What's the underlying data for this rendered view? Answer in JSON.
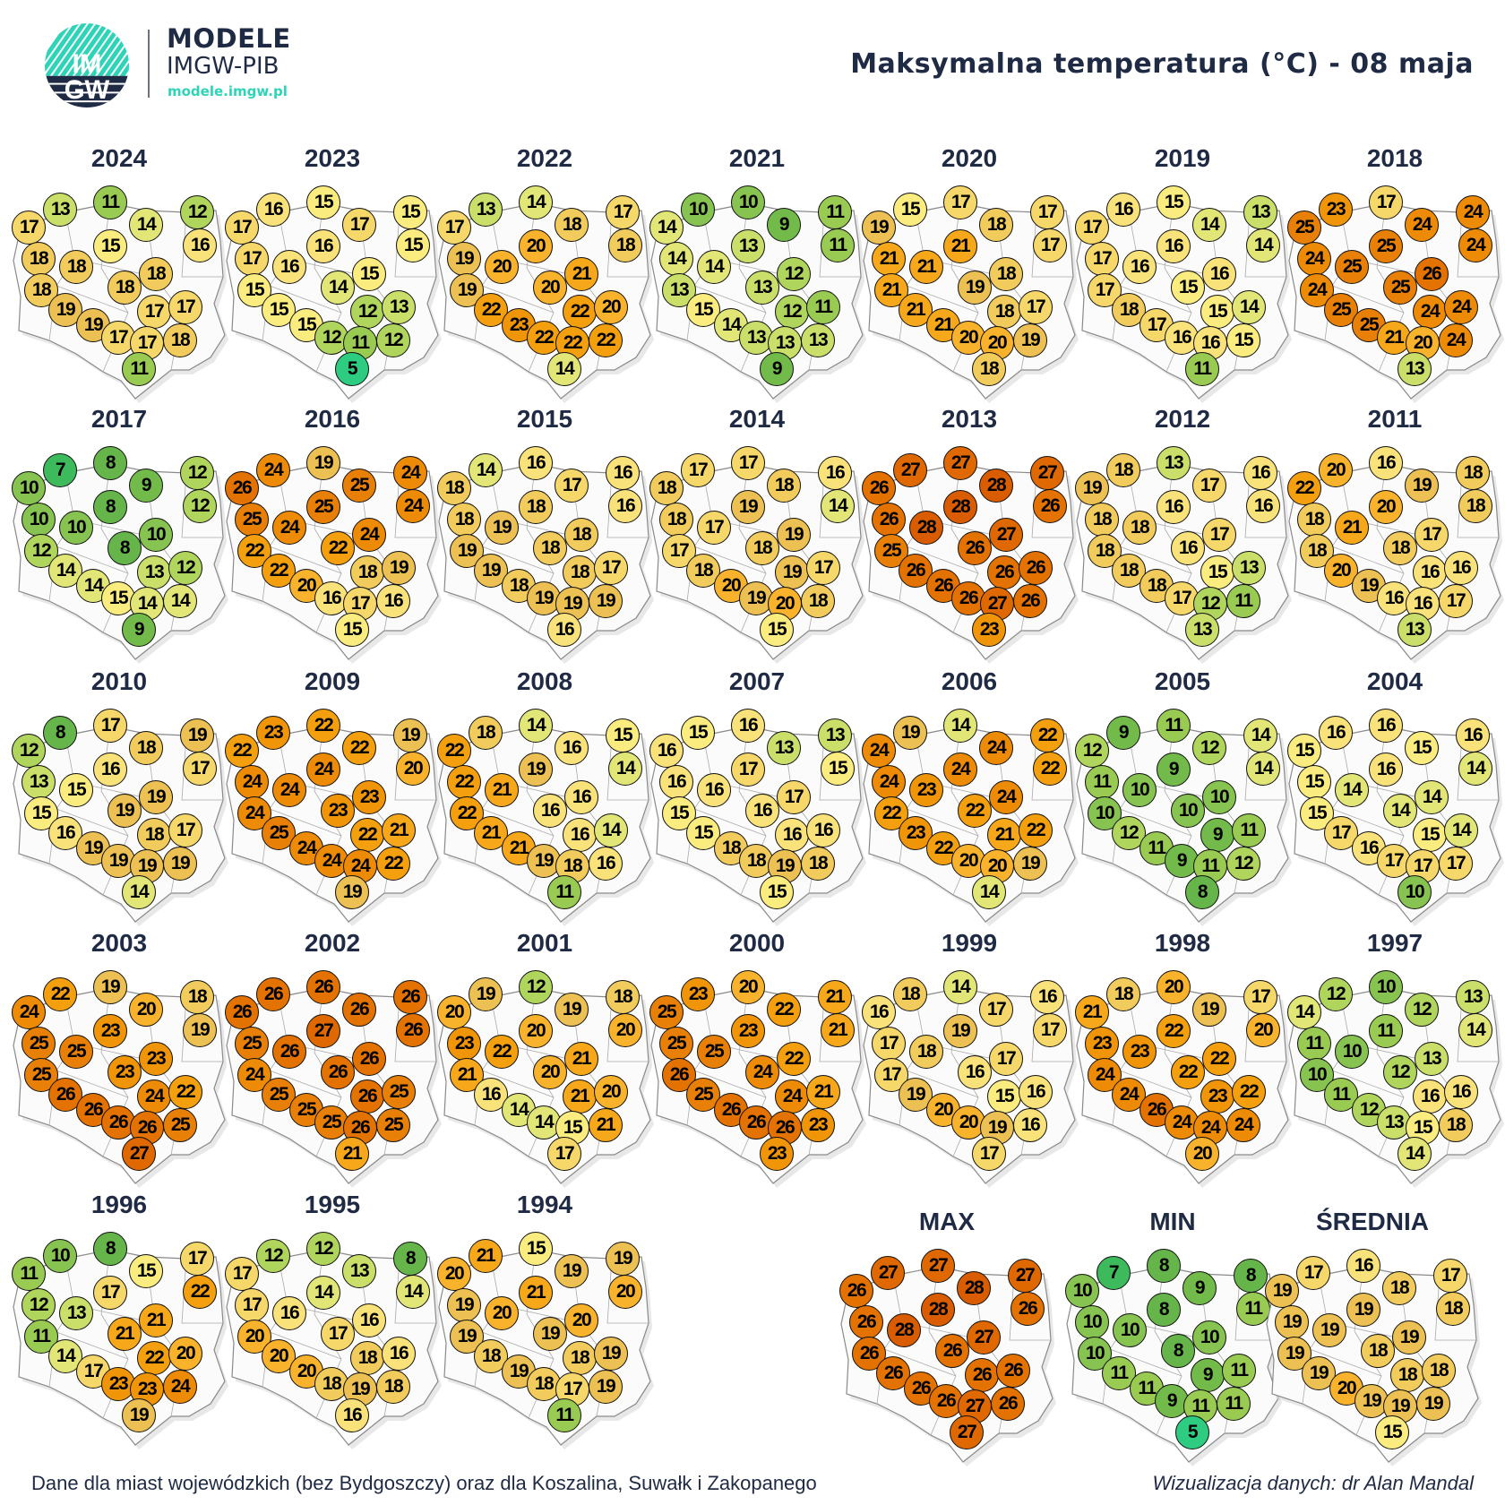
{
  "header": {
    "logo_text": "IMGW",
    "brand_title": "MODELE",
    "brand_subtitle": "IMGW-PIB",
    "brand_url": "modele.imgw.pl",
    "title": "Maksymalna temperatura (°C) - 08 maja"
  },
  "maps": [
    {
      "title": "2024",
      "values": [
        17,
        13,
        11,
        14,
        12,
        16,
        15,
        18,
        18,
        18,
        18,
        18,
        19,
        19,
        17,
        17,
        17,
        17,
        18,
        11
      ]
    },
    {
      "title": "2023",
      "values": [
        17,
        16,
        15,
        17,
        15,
        15,
        16,
        17,
        16,
        15,
        15,
        14,
        15,
        15,
        12,
        13,
        12,
        11,
        12,
        5
      ]
    },
    {
      "title": "2022",
      "values": [
        17,
        13,
        14,
        18,
        17,
        18,
        20,
        19,
        20,
        19,
        21,
        20,
        22,
        23,
        22,
        20,
        22,
        22,
        22,
        14
      ]
    },
    {
      "title": "2021",
      "values": [
        14,
        10,
        10,
        9,
        11,
        11,
        13,
        14,
        14,
        13,
        12,
        13,
        15,
        14,
        12,
        11,
        13,
        13,
        13,
        9
      ]
    },
    {
      "title": "2020",
      "values": [
        19,
        15,
        17,
        18,
        17,
        17,
        21,
        21,
        21,
        21,
        18,
        19,
        21,
        21,
        18,
        17,
        20,
        20,
        19,
        18
      ]
    },
    {
      "title": "2019",
      "values": [
        17,
        16,
        15,
        14,
        13,
        14,
        16,
        17,
        16,
        17,
        16,
        15,
        18,
        17,
        15,
        14,
        16,
        16,
        15,
        11
      ]
    },
    {
      "title": "2018",
      "values": [
        25,
        23,
        17,
        24,
        24,
        24,
        25,
        24,
        25,
        24,
        26,
        25,
        25,
        25,
        24,
        24,
        21,
        20,
        24,
        13
      ]
    },
    {
      "title": "2017",
      "values": [
        10,
        7,
        8,
        9,
        12,
        12,
        8,
        10,
        10,
        12,
        10,
        8,
        14,
        14,
        13,
        12,
        15,
        14,
        14,
        9
      ]
    },
    {
      "title": "2016",
      "values": [
        26,
        24,
        19,
        25,
        24,
        24,
        25,
        25,
        24,
        22,
        24,
        22,
        22,
        20,
        18,
        19,
        16,
        17,
        16,
        15
      ]
    },
    {
      "title": "2015",
      "values": [
        18,
        14,
        16,
        17,
        16,
        16,
        18,
        18,
        19,
        19,
        18,
        18,
        19,
        18,
        18,
        17,
        19,
        19,
        19,
        16
      ]
    },
    {
      "title": "2014",
      "values": [
        18,
        17,
        17,
        18,
        16,
        14,
        19,
        18,
        17,
        17,
        19,
        18,
        18,
        20,
        19,
        17,
        19,
        20,
        18,
        15
      ]
    },
    {
      "title": "2013",
      "values": [
        26,
        27,
        27,
        28,
        27,
        26,
        28,
        26,
        28,
        25,
        27,
        26,
        26,
        26,
        26,
        26,
        26,
        27,
        26,
        23
      ]
    },
    {
      "title": "2012",
      "values": [
        19,
        18,
        13,
        17,
        16,
        16,
        16,
        18,
        18,
        18,
        17,
        16,
        18,
        18,
        15,
        13,
        17,
        12,
        11,
        13
      ]
    },
    {
      "title": "2011",
      "values": [
        22,
        20,
        16,
        19,
        18,
        18,
        20,
        18,
        21,
        18,
        17,
        18,
        20,
        19,
        16,
        16,
        16,
        16,
        17,
        13
      ]
    },
    {
      "title": "2010",
      "values": [
        12,
        8,
        17,
        18,
        19,
        17,
        16,
        13,
        15,
        15,
        19,
        19,
        16,
        19,
        18,
        17,
        19,
        19,
        19,
        14
      ]
    },
    {
      "title": "2009",
      "values": [
        22,
        23,
        22,
        22,
        19,
        20,
        24,
        24,
        24,
        24,
        23,
        23,
        25,
        24,
        22,
        21,
        24,
        24,
        22,
        19
      ]
    },
    {
      "title": "2008",
      "values": [
        22,
        18,
        14,
        16,
        15,
        14,
        19,
        22,
        21,
        22,
        16,
        16,
        21,
        21,
        16,
        14,
        19,
        18,
        16,
        11
      ]
    },
    {
      "title": "2007",
      "values": [
        16,
        15,
        16,
        13,
        13,
        15,
        17,
        16,
        16,
        15,
        17,
        16,
        15,
        18,
        16,
        16,
        18,
        19,
        18,
        15
      ]
    },
    {
      "title": "2006",
      "values": [
        24,
        19,
        14,
        24,
        22,
        22,
        24,
        24,
        23,
        22,
        24,
        22,
        23,
        22,
        21,
        22,
        20,
        20,
        19,
        14
      ]
    },
    {
      "title": "2005",
      "values": [
        12,
        9,
        11,
        12,
        14,
        14,
        9,
        11,
        10,
        10,
        10,
        10,
        12,
        11,
        9,
        11,
        9,
        11,
        12,
        8
      ]
    },
    {
      "title": "2004",
      "values": [
        15,
        16,
        16,
        15,
        16,
        14,
        16,
        15,
        14,
        15,
        14,
        14,
        17,
        16,
        15,
        14,
        17,
        17,
        17,
        10
      ]
    },
    {
      "title": "2003",
      "values": [
        24,
        22,
        19,
        20,
        18,
        19,
        23,
        25,
        25,
        25,
        23,
        23,
        26,
        26,
        24,
        22,
        26,
        26,
        25,
        27
      ]
    },
    {
      "title": "2002",
      "values": [
        26,
        26,
        26,
        26,
        26,
        26,
        27,
        25,
        26,
        24,
        26,
        26,
        25,
        25,
        26,
        25,
        25,
        26,
        25,
        21
      ]
    },
    {
      "title": "2001",
      "values": [
        20,
        19,
        12,
        19,
        18,
        20,
        20,
        23,
        22,
        21,
        21,
        20,
        16,
        14,
        21,
        20,
        14,
        15,
        21,
        17
      ]
    },
    {
      "title": "2000",
      "values": [
        25,
        23,
        20,
        22,
        21,
        21,
        23,
        25,
        25,
        26,
        22,
        24,
        25,
        26,
        24,
        21,
        26,
        26,
        23,
        23
      ]
    },
    {
      "title": "1999",
      "values": [
        16,
        18,
        14,
        17,
        16,
        17,
        19,
        17,
        18,
        17,
        17,
        16,
        19,
        20,
        15,
        16,
        20,
        19,
        16,
        17
      ]
    },
    {
      "title": "1998",
      "values": [
        21,
        18,
        20,
        19,
        17,
        20,
        22,
        23,
        23,
        24,
        22,
        22,
        24,
        26,
        23,
        22,
        24,
        24,
        24,
        20
      ]
    },
    {
      "title": "1997",
      "values": [
        14,
        12,
        10,
        12,
        13,
        14,
        11,
        11,
        10,
        10,
        13,
        12,
        11,
        12,
        16,
        16,
        13,
        15,
        18,
        14
      ]
    },
    {
      "title": "1996",
      "values": [
        11,
        10,
        8,
        15,
        17,
        22,
        17,
        12,
        13,
        11,
        21,
        21,
        14,
        17,
        22,
        20,
        23,
        23,
        24,
        19
      ]
    },
    {
      "title": "1995",
      "values": [
        17,
        12,
        12,
        13,
        8,
        14,
        14,
        17,
        16,
        20,
        16,
        17,
        20,
        20,
        18,
        16,
        18,
        19,
        18,
        16
      ]
    },
    {
      "title": "1994",
      "values": [
        20,
        21,
        15,
        19,
        19,
        20,
        21,
        19,
        20,
        19,
        20,
        19,
        18,
        19,
        18,
        19,
        18,
        17,
        19,
        11
      ]
    }
  ],
  "summary": [
    {
      "title": "MAX",
      "values": [
        26,
        27,
        27,
        28,
        27,
        26,
        28,
        26,
        28,
        26,
        27,
        26,
        26,
        26,
        26,
        26,
        26,
        27,
        26,
        27
      ]
    },
    {
      "title": "MIN",
      "values": [
        10,
        7,
        8,
        9,
        8,
        11,
        8,
        10,
        10,
        10,
        10,
        8,
        11,
        11,
        9,
        11,
        9,
        11,
        11,
        5
      ]
    },
    {
      "title": "ŚREDNIA",
      "values": [
        19,
        17,
        16,
        18,
        17,
        18,
        19,
        19,
        19,
        19,
        19,
        18,
        19,
        20,
        18,
        18,
        19,
        19,
        19,
        15
      ]
    }
  ],
  "color_scale": {
    "5": "#2ecc80",
    "6": "#36c46a",
    "7": "#3dbb5c",
    "8": "#66b54a",
    "9": "#72ba4a",
    "10": "#86c350",
    "11": "#99cb52",
    "12": "#b0d55c",
    "13": "#c9df6a",
    "14": "#e2e677",
    "15": "#fbec80",
    "16": "#f9e27a",
    "17": "#f6d86a",
    "18": "#f1cc5c",
    "19": "#ecc052",
    "20": "#f8b22c",
    "21": "#f6a81a",
    "22": "#f4a00e",
    "23": "#f19508",
    "24": "#ed8a06",
    "25": "#e88008",
    "26": "#e47200",
    "27": "#df6800",
    "28": "#d95c00"
  },
  "footer": {
    "note": "Dane dla miast wojewódzkich (bez Bydgoszczy) oraz dla Koszalina, Suwałk i Zakopanego",
    "credit": "Wizualizacja danych: dr Alan Mandal"
  }
}
